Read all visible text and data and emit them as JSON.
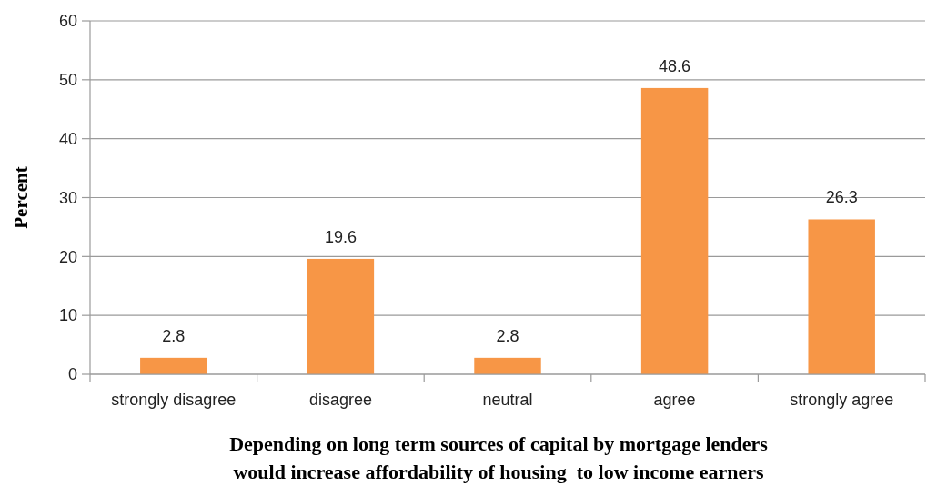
{
  "chart_data": {
    "type": "bar",
    "xlabel": "Depending on long term sources of capital by mortgage lenders\nwould increase affordability of housing  to low income earners",
    "ylabel": "Percent",
    "categories": [
      "strongly disagree",
      "disagree",
      "neutral",
      "agree",
      "strongly agree"
    ],
    "values": [
      2.8,
      19.6,
      2.8,
      48.6,
      26.3
    ],
    "color": "#f79646",
    "ylim": [
      0,
      60
    ],
    "yticks": [
      0,
      10,
      20,
      30,
      40,
      50,
      60
    ],
    "grid": "y",
    "data_labels": true
  }
}
